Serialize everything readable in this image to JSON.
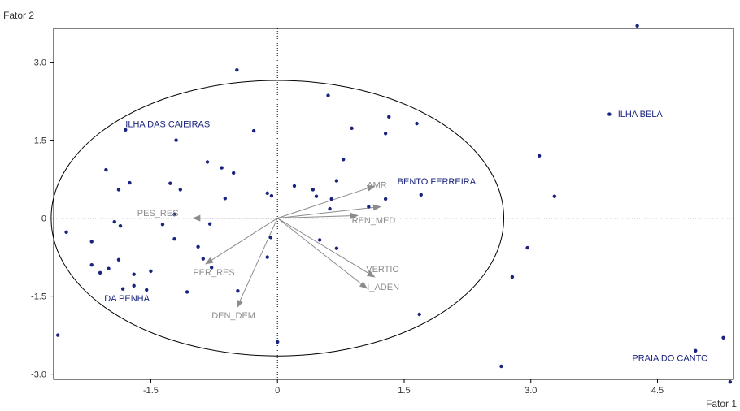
{
  "chart_data": {
    "type": "scatter",
    "xlabel": "Fator 1",
    "ylabel": "Fator 2",
    "xlim": [
      -2.65,
      5.4
    ],
    "ylim": [
      -3.1,
      3.65
    ],
    "x_ticks": [
      -1.5,
      0,
      1.5,
      3.0,
      4.5
    ],
    "x_tick_labels": [
      "-1.5",
      "0",
      "1.5",
      "3.0",
      "4.5"
    ],
    "y_ticks": [
      3.0,
      1.5,
      0,
      -1.5,
      -3.0
    ],
    "y_tick_labels": [
      "3.0",
      "1.5",
      "0",
      "-1.5",
      "-3.0"
    ],
    "grid": false,
    "reference_lines": "dotted lines at x = 0 and y = 0",
    "ellipse": {
      "cx": 0,
      "cy": 0,
      "rx": 2.68,
      "ry": 2.65
    },
    "colors": {
      "points": "#1a237e",
      "vectors": "#8c8c8c",
      "axes": "#000000"
    },
    "points": [
      {
        "x": -2.6,
        "y": -2.25
      },
      {
        "x": -2.5,
        "y": -0.27
      },
      {
        "x": -2.2,
        "y": -0.45
      },
      {
        "x": -2.2,
        "y": -0.9
      },
      {
        "x": -2.1,
        "y": -1.05
      },
      {
        "x": -2.0,
        "y": -0.97
      },
      {
        "x": -2.03,
        "y": 0.93
      },
      {
        "x": -1.93,
        "y": -0.07
      },
      {
        "x": -1.88,
        "y": -0.8
      },
      {
        "x": -1.86,
        "y": -0.15
      },
      {
        "x": -1.83,
        "y": -1.36
      },
      {
        "x": -1.75,
        "y": 0.68
      },
      {
        "x": -1.7,
        "y": -1.08
      },
      {
        "x": -1.7,
        "y": -1.3
      },
      {
        "x": -1.55,
        "y": -1.38
      },
      {
        "x": -1.5,
        "y": -1.02
      },
      {
        "x": -1.88,
        "y": 0.55
      },
      {
        "x": -1.8,
        "y": 1.7
      },
      {
        "x": -1.36,
        "y": -0.12
      },
      {
        "x": -1.27,
        "y": 0.67
      },
      {
        "x": -1.22,
        "y": 0.07
      },
      {
        "x": -1.22,
        "y": -0.4
      },
      {
        "x": -1.2,
        "y": 1.5
      },
      {
        "x": -1.15,
        "y": 0.55
      },
      {
        "x": -1.07,
        "y": -1.42
      },
      {
        "x": -0.94,
        "y": -0.55
      },
      {
        "x": -0.88,
        "y": -0.78
      },
      {
        "x": -0.83,
        "y": 1.08
      },
      {
        "x": -0.78,
        "y": -0.95
      },
      {
        "x": -0.8,
        "y": -0.11
      },
      {
        "x": -0.66,
        "y": 0.97
      },
      {
        "x": -0.62,
        "y": 0.38
      },
      {
        "x": -0.52,
        "y": 0.87
      },
      {
        "x": -0.47,
        "y": -1.4
      },
      {
        "x": -0.48,
        "y": 2.85
      },
      {
        "x": -0.28,
        "y": 1.68
      },
      {
        "x": -0.12,
        "y": 0.48
      },
      {
        "x": -0.12,
        "y": -0.75
      },
      {
        "x": -0.07,
        "y": 0.43
      },
      {
        "x": -0.08,
        "y": -0.37
      },
      {
        "x": 0.0,
        "y": -2.38
      },
      {
        "x": 0.2,
        "y": 0.62
      },
      {
        "x": 0.42,
        "y": 0.55
      },
      {
        "x": 0.46,
        "y": 0.42
      },
      {
        "x": 0.5,
        "y": -0.42
      },
      {
        "x": 0.6,
        "y": 2.36
      },
      {
        "x": 0.62,
        "y": 0.18
      },
      {
        "x": 0.64,
        "y": 0.37
      },
      {
        "x": 0.7,
        "y": -0.58
      },
      {
        "x": 0.7,
        "y": 0.72
      },
      {
        "x": 0.78,
        "y": 1.13
      },
      {
        "x": 0.88,
        "y": 1.73
      },
      {
        "x": 1.08,
        "y": 0.22
      },
      {
        "x": 1.28,
        "y": 1.63
      },
      {
        "x": 1.32,
        "y": 1.95
      },
      {
        "x": 1.65,
        "y": 1.82
      },
      {
        "x": 1.68,
        "y": -1.85
      },
      {
        "x": 2.65,
        "y": -2.85
      },
      {
        "x": 2.78,
        "y": -1.13
      },
      {
        "x": 2.96,
        "y": -0.57
      },
      {
        "x": 3.1,
        "y": 1.2
      },
      {
        "x": 3.28,
        "y": 0.42
      },
      {
        "x": 4.26,
        "y": 3.7
      },
      {
        "x": 4.95,
        "y": -2.55
      },
      {
        "x": 5.28,
        "y": -2.3
      },
      {
        "x": 5.36,
        "y": -3.15
      },
      {
        "x": 3.93,
        "y": 2.0
      },
      {
        "x": 1.7,
        "y": 0.45
      },
      {
        "x": 1.28,
        "y": 0.37
      }
    ],
    "observation_labels": [
      {
        "text": "ILHA DAS CAIEIRAS",
        "x": -1.8,
        "y": 1.75
      },
      {
        "text": "ILHA BELA",
        "x": 4.03,
        "y": 1.95
      },
      {
        "text": "BENTO FERREIRA",
        "x": 1.42,
        "y": 0.65
      },
      {
        "text": "DA PENHA",
        "x": -2.05,
        "y": -1.6
      },
      {
        "text": "PRAIA DO CANTO",
        "x": 4.2,
        "y": -2.75
      }
    ],
    "vectors": [
      {
        "name": "AMR",
        "x": 1.15,
        "y": 0.62
      },
      {
        "name": "BENTO FERREIRA",
        "x": 1.22,
        "y": 0.22
      },
      {
        "name": "REN_MED",
        "x": 0.95,
        "y": 0.05
      },
      {
        "name": "VERTIC",
        "x": 1.15,
        "y": -1.13
      },
      {
        "name": "I_ADEN",
        "x": 1.06,
        "y": -1.35
      },
      {
        "name": "PES_RES",
        "x": -1.0,
        "y": 0.0
      },
      {
        "name": "PER_RES",
        "x": -0.85,
        "y": -0.88
      },
      {
        "name": "DEN_DEM",
        "x": -0.48,
        "y": -1.72
      }
    ],
    "vector_labels": [
      {
        "text": "AMR",
        "x": 1.06,
        "y": 0.58
      },
      {
        "text": "REN_MED",
        "x": 0.88,
        "y": -0.1
      },
      {
        "text": "VERTIC",
        "x": 1.05,
        "y": -1.04
      },
      {
        "text": "I_ADEN",
        "x": 1.06,
        "y": -1.38
      },
      {
        "text": "PES_RES",
        "x": -1.66,
        "y": 0.04
      },
      {
        "text": "PER_RES",
        "x": -1.0,
        "y": -1.1
      },
      {
        "text": "DEN_DEM",
        "x": -0.78,
        "y": -1.93
      }
    ]
  }
}
